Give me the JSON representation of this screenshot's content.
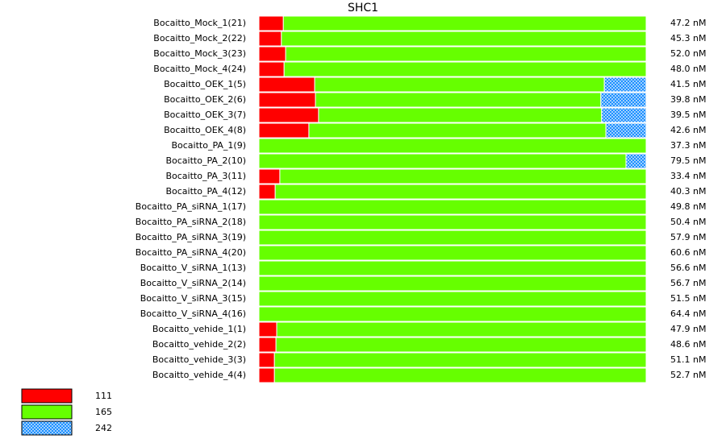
{
  "chart_data": {
    "type": "bar",
    "orientation": "horizontal",
    "stacked": true,
    "title": "SHC1",
    "xlim": [
      0,
      100
    ],
    "categories": [
      "Bocaitto_Mock_1(21)",
      "Bocaitto_Mock_2(22)",
      "Bocaitto_Mock_3(23)",
      "Bocaitto_Mock_4(24)",
      "Bocaitto_OEK_1(5)",
      "Bocaitto_OEK_2(6)",
      "Bocaitto_OEK_3(7)",
      "Bocaitto_OEK_4(8)",
      "Bocaitto_PA_1(9)",
      "Bocaitto_PA_2(10)",
      "Bocaitto_PA_3(11)",
      "Bocaitto_PA_4(12)",
      "Bocaitto_PA_siRNA_1(17)",
      "Bocaitto_PA_siRNA_2(18)",
      "Bocaitto_PA_siRNA_3(19)",
      "Bocaitto_PA_siRNA_4(20)",
      "Bocaitto_V_siRNA_1(13)",
      "Bocaitto_V_siRNA_2(14)",
      "Bocaitto_V_siRNA_3(15)",
      "Bocaitto_V_siRNA_4(16)",
      "Bocaitto_vehide_1(1)",
      "Bocaitto_vehide_2(2)",
      "Bocaitto_vehide_3(3)",
      "Bocaitto_vehide_4(4)"
    ],
    "row_totals": [
      "47.2 nM",
      "45.3 nM",
      "52.0 nM",
      "48.0 nM",
      "41.5 nM",
      "39.8 nM",
      "39.5 nM",
      "42.6 nM",
      "37.3 nM",
      "79.5 nM",
      "33.4 nM",
      "40.3 nM",
      "49.8 nM",
      "50.4 nM",
      "57.9 nM",
      "60.6 nM",
      "56.6 nM",
      "56.7 nM",
      "51.5 nM",
      "64.4 nM",
      "47.9 nM",
      "48.6 nM",
      "51.1 nM",
      "52.7 nM"
    ],
    "series": [
      {
        "name": "111",
        "color": "#ff0000",
        "values": [
          6.3,
          5.8,
          6.9,
          6.5,
          14.4,
          14.6,
          15.4,
          12.9,
          0,
          0,
          5.4,
          4.2,
          0,
          0,
          0,
          0,
          0,
          0,
          0,
          0,
          4.6,
          4.4,
          4.0,
          4.0
        ]
      },
      {
        "name": "165",
        "color": "#66ff00",
        "values": [
          93.7,
          94.2,
          93.1,
          93.5,
          74.8,
          73.7,
          73.1,
          76.7,
          100,
          94.8,
          94.6,
          95.8,
          100,
          100,
          100,
          100,
          100,
          100,
          100,
          100,
          95.4,
          95.6,
          96.0,
          96.0
        ]
      },
      {
        "name": "242",
        "color": "#1e90ff",
        "pattern": "checker",
        "values": [
          0,
          0,
          0,
          0,
          10.8,
          11.7,
          11.5,
          10.4,
          0,
          5.2,
          0,
          0,
          0,
          0,
          0,
          0,
          0,
          0,
          0,
          0,
          0,
          0,
          0,
          0
        ]
      }
    ]
  }
}
